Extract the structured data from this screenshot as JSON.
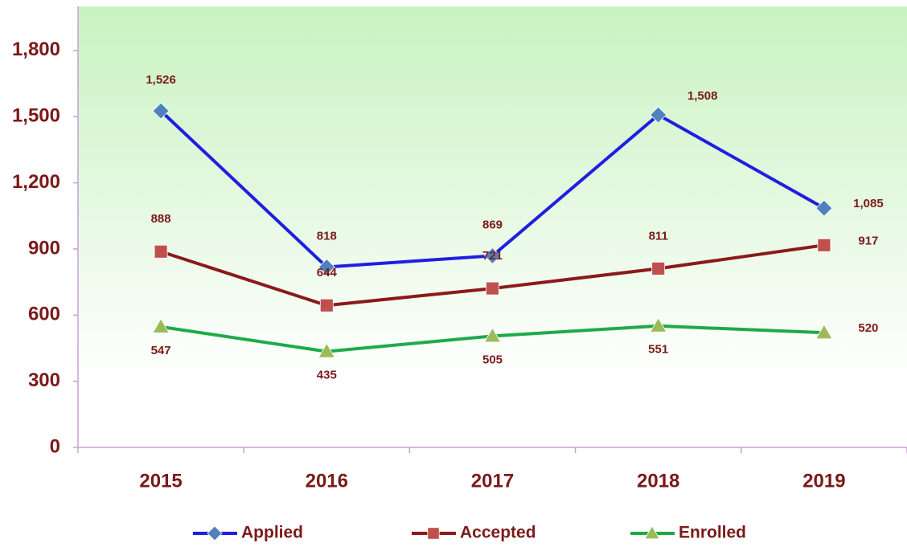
{
  "chart_data": {
    "type": "line",
    "categories": [
      "2015",
      "2016",
      "2017",
      "2018",
      "2019"
    ],
    "series": [
      {
        "name": "Applied",
        "color": "#1f1fe0",
        "marker": "diamond",
        "marker_color": "#4f81bd",
        "values": [
          1526,
          818,
          869,
          1508,
          1085
        ],
        "value_labels": [
          "1,526",
          "818",
          "869",
          "1,508",
          "1,085"
        ]
      },
      {
        "name": "Accepted",
        "color": "#8b1a1a",
        "marker": "square",
        "marker_color": "#c0504d",
        "values": [
          888,
          644,
          721,
          811,
          917
        ]
      },
      {
        "name": "Enrolled",
        "color": "#1faa4a",
        "marker": "triangle",
        "marker_color": "#9bbb59",
        "values": [
          547,
          435,
          505,
          551,
          520
        ]
      }
    ],
    "ylim": [
      0,
      2000
    ],
    "yticks": [
      0,
      300,
      600,
      900,
      {
        "value": 1200,
        "label": "1,200"
      },
      {
        "value": 1500,
        "label": "1,500"
      },
      {
        "value": 1800,
        "label": "1,800"
      }
    ],
    "legend": "bottom"
  }
}
